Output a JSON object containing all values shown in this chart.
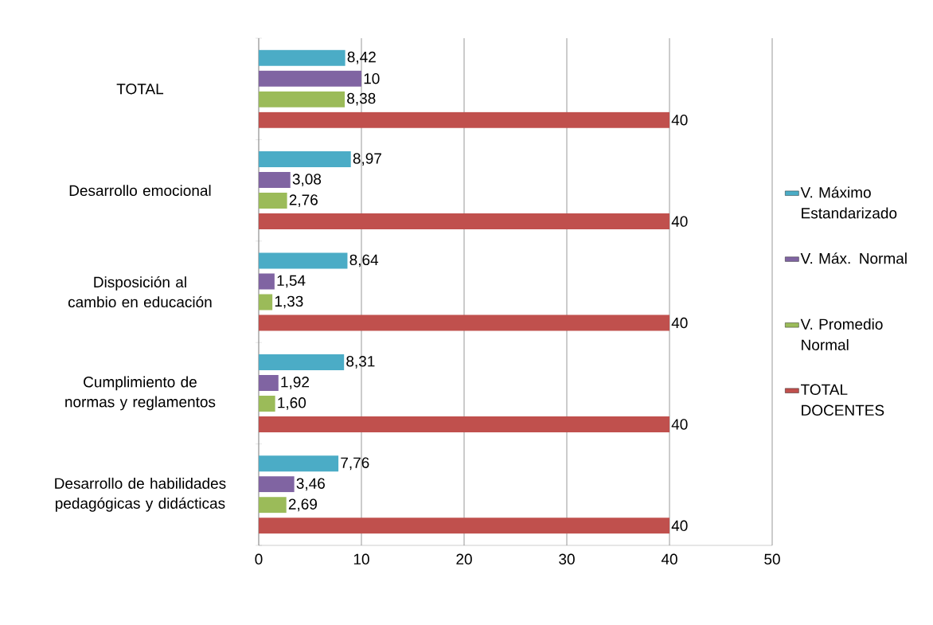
{
  "chart_data": {
    "type": "bar",
    "orientation": "horizontal",
    "categories": [
      "TOTAL",
      "Desarrollo emocional",
      "Disposición al cambio en educación",
      "Cumplimiento de normas y reglamentos",
      "Desarrollo de habilidades pedagógicas y didácticas"
    ],
    "series": [
      {
        "name": "V.  Máximo Estandarizado",
        "color": "#4bacc6",
        "values": [
          8.42,
          8.97,
          8.64,
          8.31,
          7.76
        ],
        "value_labels": [
          "8,42",
          "8,97",
          "8,64",
          "8,31",
          "7,76"
        ]
      },
      {
        "name": "V. Máx. Normal",
        "color": "#8064a2",
        "values": [
          10,
          3.08,
          1.54,
          1.92,
          3.46
        ],
        "value_labels": [
          "10",
          "3,08",
          "1,54",
          "1,92",
          "3,46"
        ]
      },
      {
        "name": "V. Promedio Normal",
        "color": "#9bbb59",
        "values": [
          8.38,
          2.76,
          1.33,
          1.6,
          2.69
        ],
        "value_labels": [
          "8,38",
          "2,76",
          "1,33",
          "1,60",
          "2,69"
        ]
      },
      {
        "name": "TOTAL DOCENTES",
        "color": "#c0504d",
        "values": [
          40,
          40,
          40,
          40,
          40
        ],
        "value_labels": [
          "40",
          "40",
          "40",
          "40",
          "40"
        ]
      }
    ],
    "xlim": [
      0,
      50
    ],
    "xticks": [
      0,
      10,
      20,
      30,
      40,
      50
    ],
    "grid": "x",
    "legend": "right"
  }
}
